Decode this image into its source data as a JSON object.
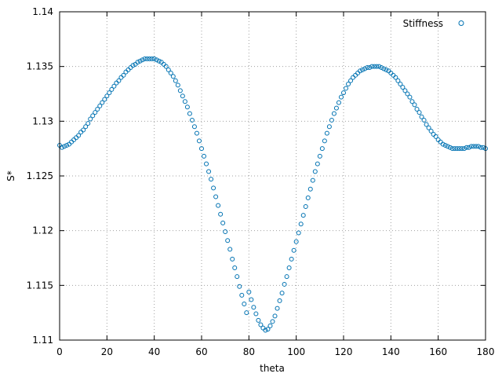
{
  "chart_data": {
    "type": "scatter",
    "title": "",
    "xlabel": "theta",
    "ylabel": "S*",
    "xlim": [
      0,
      180
    ],
    "ylim": [
      1.11,
      1.14
    ],
    "xticks": [
      "0",
      "20",
      "40",
      "60",
      "80",
      "100",
      "120",
      "140",
      "160",
      "180"
    ],
    "yticks": [
      "1.11",
      "1.115",
      "1.12",
      "1.125",
      "1.13",
      "1.135",
      "1.14"
    ],
    "grid": true,
    "legend_position": "top-right",
    "series": [
      {
        "name": "Stiffness",
        "color": "#0072b2",
        "marker": "circle-open",
        "points": [
          [
            0,
            1.1278
          ],
          [
            1,
            1.1276
          ],
          [
            2,
            1.1277
          ],
          [
            3,
            1.1278
          ],
          [
            4,
            1.1279
          ],
          [
            5,
            1.1281
          ],
          [
            6,
            1.1283
          ],
          [
            7,
            1.1285
          ],
          [
            8,
            1.1287
          ],
          [
            9,
            1.129
          ],
          [
            10,
            1.1292
          ],
          [
            11,
            1.1295
          ],
          [
            12,
            1.1298
          ],
          [
            13,
            1.1302
          ],
          [
            14,
            1.1305
          ],
          [
            15,
            1.1308
          ],
          [
            16,
            1.1311
          ],
          [
            17,
            1.1314
          ],
          [
            18,
            1.1317
          ],
          [
            19,
            1.132
          ],
          [
            20,
            1.1323
          ],
          [
            21,
            1.1326
          ],
          [
            22,
            1.1329
          ],
          [
            23,
            1.1332
          ],
          [
            24,
            1.1335
          ],
          [
            25,
            1.1337
          ],
          [
            26,
            1.134
          ],
          [
            27,
            1.1342
          ],
          [
            28,
            1.1345
          ],
          [
            29,
            1.1347
          ],
          [
            30,
            1.1349
          ],
          [
            31,
            1.1351
          ],
          [
            32,
            1.1352
          ],
          [
            33,
            1.1354
          ],
          [
            34,
            1.1355
          ],
          [
            35,
            1.1356
          ],
          [
            36,
            1.1357
          ],
          [
            37,
            1.1357
          ],
          [
            38,
            1.1357
          ],
          [
            39,
            1.1357
          ],
          [
            40,
            1.1357
          ],
          [
            41,
            1.1356
          ],
          [
            42,
            1.1355
          ],
          [
            43,
            1.1354
          ],
          [
            44,
            1.1352
          ],
          [
            45,
            1.135
          ],
          [
            46,
            1.1347
          ],
          [
            47,
            1.1344
          ],
          [
            48,
            1.1341
          ],
          [
            49,
            1.1337
          ],
          [
            50,
            1.1333
          ],
          [
            51,
            1.1328
          ],
          [
            52,
            1.1323
          ],
          [
            53,
            1.1318
          ],
          [
            54,
            1.1313
          ],
          [
            55,
            1.1307
          ],
          [
            56,
            1.1301
          ],
          [
            57,
            1.1295
          ],
          [
            58,
            1.1289
          ],
          [
            59,
            1.1282
          ],
          [
            60,
            1.1275
          ],
          [
            61,
            1.1268
          ],
          [
            62,
            1.1261
          ],
          [
            63,
            1.1254
          ],
          [
            64,
            1.1247
          ],
          [
            65,
            1.1239
          ],
          [
            66,
            1.1231
          ],
          [
            67,
            1.1223
          ],
          [
            68,
            1.1215
          ],
          [
            69,
            1.1207
          ],
          [
            70,
            1.1199
          ],
          [
            71,
            1.1191
          ],
          [
            72,
            1.1183
          ],
          [
            73,
            1.1174
          ],
          [
            74,
            1.1166
          ],
          [
            75,
            1.1158
          ],
          [
            76,
            1.1149
          ],
          [
            77,
            1.1141
          ],
          [
            78,
            1.1133
          ],
          [
            79,
            1.1125
          ],
          [
            80,
            1.1144
          ],
          [
            81,
            1.1137
          ],
          [
            82,
            1.113
          ],
          [
            83,
            1.1124
          ],
          [
            84,
            1.1118
          ],
          [
            85,
            1.1114
          ],
          [
            86,
            1.1111
          ],
          [
            87,
            1.1109
          ],
          [
            88,
            1.111
          ],
          [
            89,
            1.1113
          ],
          [
            90,
            1.1117
          ],
          [
            91,
            1.1122
          ],
          [
            92,
            1.1129
          ],
          [
            93,
            1.1136
          ],
          [
            94,
            1.1143
          ],
          [
            95,
            1.1151
          ],
          [
            96,
            1.1158
          ],
          [
            97,
            1.1166
          ],
          [
            98,
            1.1174
          ],
          [
            99,
            1.1182
          ],
          [
            100,
            1.119
          ],
          [
            101,
            1.1198
          ],
          [
            102,
            1.1206
          ],
          [
            103,
            1.1214
          ],
          [
            104,
            1.1222
          ],
          [
            105,
            1.123
          ],
          [
            106,
            1.1238
          ],
          [
            107,
            1.1246
          ],
          [
            108,
            1.1254
          ],
          [
            109,
            1.1261
          ],
          [
            110,
            1.1268
          ],
          [
            111,
            1.1275
          ],
          [
            112,
            1.1282
          ],
          [
            113,
            1.1289
          ],
          [
            114,
            1.1295
          ],
          [
            115,
            1.1301
          ],
          [
            116,
            1.1307
          ],
          [
            117,
            1.1312
          ],
          [
            118,
            1.1317
          ],
          [
            119,
            1.1322
          ],
          [
            120,
            1.1326
          ],
          [
            121,
            1.133
          ],
          [
            122,
            1.1334
          ],
          [
            123,
            1.1337
          ],
          [
            124,
            1.134
          ],
          [
            125,
            1.1342
          ],
          [
            126,
            1.1344
          ],
          [
            127,
            1.1346
          ],
          [
            128,
            1.1347
          ],
          [
            129,
            1.1348
          ],
          [
            130,
            1.1349
          ],
          [
            131,
            1.1349
          ],
          [
            132,
            1.135
          ],
          [
            133,
            1.135
          ],
          [
            134,
            1.135
          ],
          [
            135,
            1.135
          ],
          [
            136,
            1.1349
          ],
          [
            137,
            1.1348
          ],
          [
            138,
            1.1347
          ],
          [
            139,
            1.1346
          ],
          [
            140,
            1.1344
          ],
          [
            141,
            1.1342
          ],
          [
            142,
            1.134
          ],
          [
            143,
            1.1337
          ],
          [
            144,
            1.1334
          ],
          [
            145,
            1.1331
          ],
          [
            146,
            1.1328
          ],
          [
            147,
            1.1325
          ],
          [
            148,
            1.1322
          ],
          [
            149,
            1.1318
          ],
          [
            150,
            1.1315
          ],
          [
            151,
            1.1311
          ],
          [
            152,
            1.1308
          ],
          [
            153,
            1.1304
          ],
          [
            154,
            1.1301
          ],
          [
            155,
            1.1297
          ],
          [
            156,
            1.1294
          ],
          [
            157,
            1.1291
          ],
          [
            158,
            1.1288
          ],
          [
            159,
            1.1286
          ],
          [
            160,
            1.1283
          ],
          [
            161,
            1.1281
          ],
          [
            162,
            1.1279
          ],
          [
            163,
            1.1278
          ],
          [
            164,
            1.1277
          ],
          [
            165,
            1.1276
          ],
          [
            166,
            1.1275
          ],
          [
            167,
            1.1275
          ],
          [
            168,
            1.1275
          ],
          [
            169,
            1.1275
          ],
          [
            170,
            1.1275
          ],
          [
            171,
            1.1275
          ],
          [
            172,
            1.1276
          ],
          [
            173,
            1.1276
          ],
          [
            174,
            1.1277
          ],
          [
            175,
            1.1277
          ],
          [
            176,
            1.1277
          ],
          [
            177,
            1.1277
          ],
          [
            178,
            1.1276
          ],
          [
            179,
            1.1276
          ],
          [
            180,
            1.1275
          ]
        ]
      }
    ]
  }
}
